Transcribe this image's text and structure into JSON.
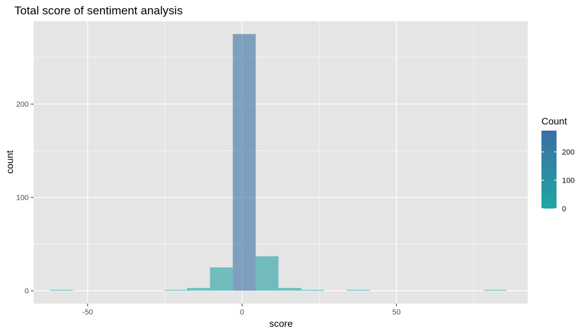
{
  "chart_data": {
    "type": "bar",
    "title": "Total score of sentiment analysis",
    "xlabel": "score",
    "ylabel": "count",
    "xlim": [
      -67.5,
      92.5
    ],
    "ylim": [
      -13.75,
      288.75
    ],
    "x_ticks": [
      -50,
      0,
      50
    ],
    "y_ticks": [
      0,
      100,
      200
    ],
    "bin_width": 7.4,
    "bins": [
      {
        "x": -58.5,
        "count": 1
      },
      {
        "x": -21.5,
        "count": 1
      },
      {
        "x": -14.1,
        "count": 3
      },
      {
        "x": -6.7,
        "count": 25
      },
      {
        "x": 0.7,
        "count": 275
      },
      {
        "x": 8.1,
        "count": 37
      },
      {
        "x": 15.5,
        "count": 3
      },
      {
        "x": 22.9,
        "count": 1
      },
      {
        "x": 37.7,
        "count": 1
      },
      {
        "x": 81.9,
        "count": 1
      }
    ],
    "grid": true,
    "legend": {
      "title": "Count",
      "position": "right",
      "labels": [
        0,
        100,
        200
      ],
      "range": [
        0,
        275
      ],
      "color_low": "#21a5a2",
      "color_high": "#3a6fa4"
    },
    "colors": {
      "panel_background": "#e5e5e5",
      "grid": "#ffffff"
    }
  }
}
